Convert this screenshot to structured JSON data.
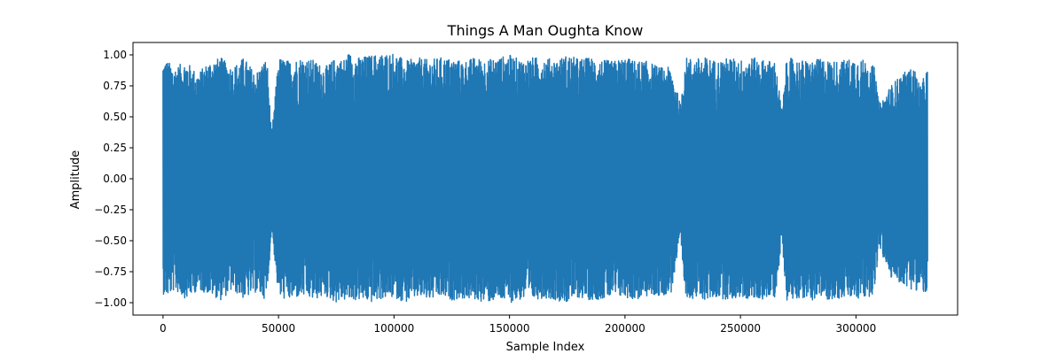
{
  "chart_data": {
    "type": "line",
    "title": "Things A Man Oughta Know",
    "xlabel": "Sample Index",
    "ylabel": "Amplitude",
    "xlim": [
      -13000,
      344000
    ],
    "ylim": [
      -1.1,
      1.1
    ],
    "x_ticks": [
      0,
      50000,
      100000,
      150000,
      200000,
      250000,
      300000
    ],
    "x_tick_labels": [
      "0",
      "50000",
      "100000",
      "150000",
      "200000",
      "250000",
      "300000"
    ],
    "y_ticks": [
      1.0,
      0.75,
      0.5,
      0.25,
      0.0,
      -0.25,
      -0.5,
      -0.75,
      -1.0
    ],
    "y_tick_labels": [
      "1.00",
      "0.75",
      "0.50",
      "0.25",
      "0.00",
      "−0.25",
      "−0.50",
      "−0.75",
      "−1.00"
    ],
    "grid": false,
    "legend": "none",
    "series": [
      {
        "color": "#1f77b4",
        "x_start": 0,
        "x_end": 331000,
        "envelope": {
          "x": [
            0,
            2000,
            5000,
            10000,
            15000,
            20000,
            25000,
            30000,
            35000,
            40000,
            45000,
            47000,
            50000,
            55000,
            60000,
            65000,
            70000,
            75000,
            78000,
            80000,
            85000,
            90000,
            95000,
            100000,
            105000,
            110000,
            115000,
            120000,
            125000,
            130000,
            135000,
            140000,
            145000,
            150000,
            155000,
            160000,
            165000,
            170000,
            175000,
            180000,
            185000,
            190000,
            195000,
            200000,
            205000,
            210000,
            215000,
            220000,
            224000,
            226000,
            230000,
            235000,
            240000,
            245000,
            250000,
            255000,
            260000,
            265000,
            268000,
            270000,
            275000,
            280000,
            285000,
            290000,
            295000,
            300000,
            305000,
            308000,
            310000,
            315000,
            320000,
            325000,
            328000,
            331000
          ],
          "max": [
            0.96,
            0.95,
            0.9,
            0.95,
            0.85,
            0.95,
            0.98,
            0.9,
            0.98,
            0.85,
            0.98,
            0.35,
            0.98,
            0.95,
            0.98,
            0.96,
            0.9,
            0.98,
            0.96,
            1.02,
            0.98,
            1.0,
            1.01,
            1.02,
            0.95,
            0.98,
            0.96,
            0.98,
            0.97,
            0.95,
            0.98,
            0.96,
            0.98,
            1.0,
            0.96,
            0.98,
            0.98,
            0.96,
            1.0,
            0.97,
            0.98,
            0.96,
            0.95,
            0.98,
            0.95,
            0.95,
            0.9,
            0.9,
            0.6,
            0.98,
            0.97,
            0.98,
            0.95,
            0.98,
            0.96,
            0.98,
            0.96,
            0.95,
            0.55,
            0.98,
            0.96,
            0.95,
            0.97,
            0.95,
            0.96,
            0.98,
            0.95,
            0.9,
            0.6,
            0.75,
            0.85,
            0.9,
            0.75,
            0.9
          ],
          "min": [
            -0.93,
            -0.95,
            -0.9,
            -0.97,
            -0.9,
            -0.93,
            -0.98,
            -0.9,
            -0.97,
            -0.92,
            -0.98,
            -0.4,
            -0.96,
            -0.98,
            -0.95,
            -0.98,
            -0.95,
            -1.0,
            -0.98,
            -0.99,
            -0.98,
            -1.0,
            -0.97,
            -0.96,
            -1.0,
            -0.96,
            -0.98,
            -0.96,
            -0.98,
            -0.97,
            -0.98,
            -1.0,
            -0.98,
            -1.0,
            -0.98,
            -0.98,
            -0.96,
            -0.98,
            -1.0,
            -0.96,
            -0.98,
            -0.97,
            -0.96,
            -0.96,
            -0.98,
            -0.95,
            -0.95,
            -0.92,
            -0.5,
            -0.95,
            -0.97,
            -0.98,
            -0.96,
            -0.98,
            -0.96,
            -0.98,
            -0.97,
            -0.96,
            -0.5,
            -0.98,
            -0.96,
            -0.98,
            -0.97,
            -0.98,
            -0.96,
            -0.98,
            -0.96,
            -0.92,
            -0.55,
            -0.8,
            -0.85,
            -0.9,
            -0.9,
            -0.95
          ]
        }
      }
    ]
  }
}
